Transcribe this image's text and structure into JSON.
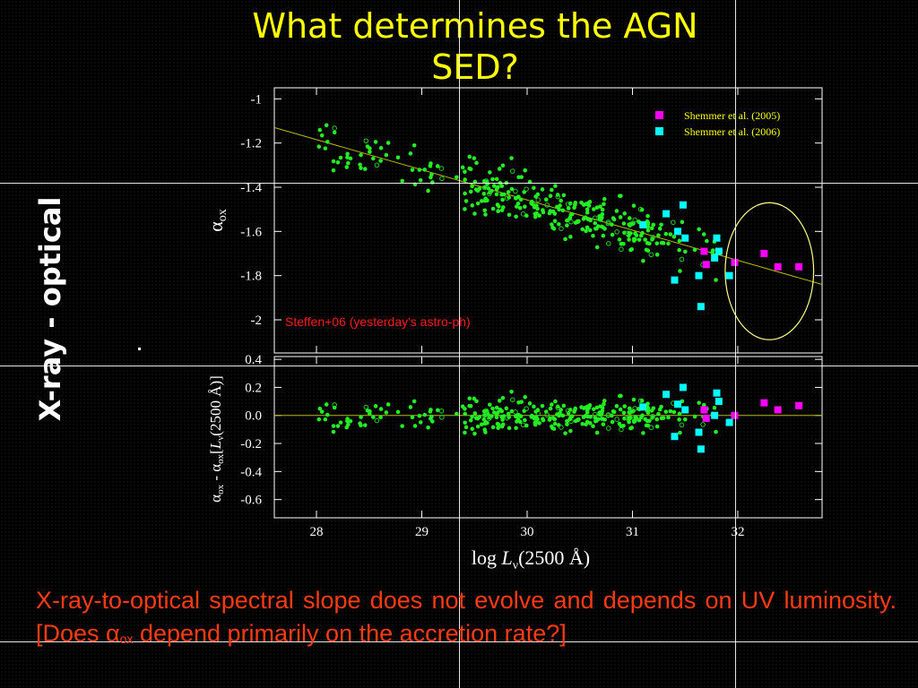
{
  "slide": {
    "title": "What determines the AGN SED?",
    "side_label": "X-ray - optical",
    "caption_part1": "X-ray-to-optical spectral slope does not evolve and depends on UV luminosity. [Does α",
    "caption_sub": "ox",
    "caption_part2": " depend primarily on the accretion rate?]",
    "colors": {
      "title": "#ffff00",
      "caption": "#ff3b14",
      "background": "#000000"
    }
  },
  "chart_data": [
    {
      "type": "scatter",
      "panel": "top",
      "ylabel": "αox",
      "ylim": [
        -2.15,
        -0.95
      ],
      "yticks": [
        -1,
        -1.2,
        -1.4,
        -1.6,
        -1.8,
        -2
      ],
      "xlim": [
        27.6,
        32.8
      ],
      "annotation": "Steffen+06 (yesterday's astro-ph)",
      "legend": {
        "position": "top-right",
        "entries": [
          {
            "label": "Shemmer et al. (2005)",
            "color": "#ff00ff"
          },
          {
            "label": "Shemmer et al. (2006)",
            "color": "#00ffff"
          }
        ]
      },
      "fit_line": {
        "x": [
          27.6,
          32.8
        ],
        "y": [
          -1.13,
          -1.84
        ],
        "color": "#b8b800"
      },
      "highlight_ellipse": {
        "cx": 32.3,
        "cy": -1.78,
        "rx": 0.42,
        "ry": 0.31,
        "color": "#ffff88"
      },
      "series": [
        {
          "name": "Shemmer et al. (2005)",
          "color": "#ff00ff",
          "points": [
            [
              31.68,
              -1.69
            ],
            [
              31.7,
              -1.75
            ],
            [
              32.25,
              -1.7
            ],
            [
              32.38,
              -1.76
            ],
            [
              32.58,
              -1.76
            ],
            [
              31.97,
              -1.74
            ]
          ]
        },
        {
          "name": "Shemmer et al. (2006)",
          "color": "#00ffff",
          "points": [
            [
              31.1,
              -1.57
            ],
            [
              31.32,
              -1.52
            ],
            [
              31.48,
              -1.48
            ],
            [
              31.43,
              -1.6
            ],
            [
              31.5,
              -1.63
            ],
            [
              31.8,
              -1.63
            ],
            [
              31.82,
              -1.69
            ],
            [
              31.78,
              -1.72
            ],
            [
              31.63,
              -1.8
            ],
            [
              31.4,
              -1.82
            ],
            [
              31.65,
              -1.94
            ],
            [
              31.92,
              -1.8
            ]
          ]
        }
      ]
    },
    {
      "type": "scatter",
      "panel": "bottom",
      "ylabel": "αox - αox[Lν(2500 Å)]",
      "ylim": [
        -0.73,
        0.42
      ],
      "yticks": [
        0.4,
        0.2,
        0.0,
        -0.2,
        -0.4,
        -0.6
      ],
      "ytick_labels": [
        "0.4",
        "0.2",
        "0.0",
        "-0.2",
        "-0.4",
        "-0.6"
      ],
      "xlabel": "log Lν(2500 Å)",
      "xlim": [
        27.6,
        32.8
      ],
      "xticks": [
        28,
        29,
        30,
        31,
        32
      ],
      "zero_line_color": "#b8b800",
      "series": [
        {
          "name": "Shemmer et al. (2005)",
          "color": "#ff00ff",
          "points": [
            [
              31.68,
              0.04
            ],
            [
              31.7,
              -0.02
            ],
            [
              32.25,
              0.09
            ],
            [
              32.38,
              0.04
            ],
            [
              32.58,
              0.07
            ],
            [
              31.97,
              0.0
            ]
          ]
        },
        {
          "name": "Shemmer et al. (2006)",
          "color": "#00ffff",
          "points": [
            [
              31.1,
              0.06
            ],
            [
              31.32,
              0.15
            ],
            [
              31.48,
              0.2
            ],
            [
              31.43,
              0.08
            ],
            [
              31.5,
              0.04
            ],
            [
              31.8,
              0.16
            ],
            [
              31.82,
              0.1
            ],
            [
              31.78,
              0.0
            ],
            [
              31.63,
              -0.12
            ],
            [
              31.4,
              -0.15
            ],
            [
              31.65,
              -0.24
            ],
            [
              31.92,
              -0.05
            ]
          ]
        }
      ]
    }
  ]
}
